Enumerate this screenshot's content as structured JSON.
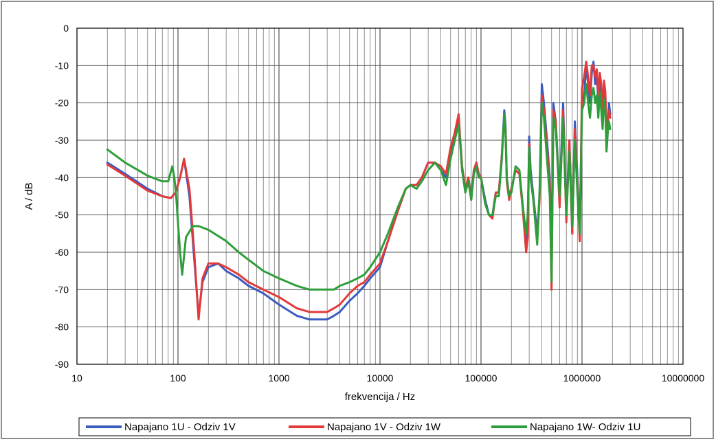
{
  "chart_data": {
    "type": "line",
    "title": "",
    "xlabel": "frekvencija / Hz",
    "ylabel": "A / dB",
    "x_scale": "log",
    "xlim": [
      10,
      10000000
    ],
    "ylim": [
      -90,
      0
    ],
    "grid": true,
    "legend_position": "bottom",
    "x_ticks": [
      "10",
      "100",
      "1000",
      "10000",
      "100000",
      "1000000",
      "10000000"
    ],
    "y_ticks": [
      "0",
      "-10",
      "-20",
      "-30",
      "-40",
      "-50",
      "-60",
      "-70",
      "-80",
      "-90"
    ],
    "series": [
      {
        "name": "Napajano 1U - Odziv 1V",
        "color": "#3a5bbf",
        "x": [
          20,
          30,
          50,
          70,
          85,
          95,
          105,
          115,
          130,
          145,
          160,
          175,
          200,
          250,
          300,
          400,
          500,
          700,
          1000,
          1500,
          2000,
          2500,
          3000,
          3500,
          4000,
          5000,
          6000,
          7000,
          8000,
          10000,
          12000,
          15000,
          18000,
          20000,
          23000,
          26000,
          30000,
          35000,
          40000,
          45000,
          50000,
          55000,
          60000,
          62000,
          65000,
          70000,
          75000,
          80000,
          85000,
          90000,
          95000,
          100000,
          110000,
          120000,
          130000,
          140000,
          150000,
          160000,
          170000,
          175000,
          180000,
          190000,
          200000,
          220000,
          240000,
          260000,
          280000,
          290000,
          300000,
          310000,
          330000,
          360000,
          380000,
          400000,
          420000,
          450000,
          480000,
          500000,
          520000,
          550000,
          600000,
          650000,
          700000,
          750000,
          800000,
          850000,
          900000,
          950000,
          1000000,
          1050000,
          1100000,
          1150000,
          1200000,
          1250000,
          1300000,
          1350000,
          1400000,
          1450000,
          1500000,
          1550000,
          1600000,
          1650000,
          1700000,
          1750000,
          1800000,
          1850000,
          1900000
        ],
        "y": [
          -36,
          -39,
          -43,
          -45,
          -45.5,
          -44,
          -40,
          -35,
          -45,
          -62,
          -77,
          -68,
          -64,
          -63,
          -65,
          -67,
          -69,
          -71,
          -74,
          -77,
          -78,
          -78,
          -78,
          -77,
          -76,
          -73,
          -71,
          -69,
          -67,
          -64,
          -57,
          -49,
          -43,
          -42,
          -42,
          -40,
          -36,
          -36,
          -38,
          -40,
          -33,
          -29,
          -24,
          -30,
          -38,
          -43,
          -40,
          -45,
          -38,
          -36,
          -39,
          -40,
          -46,
          -50,
          -50,
          -44,
          -44,
          -35,
          -22,
          -26,
          -40,
          -45,
          -43,
          -38,
          -39,
          -48,
          -57,
          -55,
          -29,
          -38,
          -45,
          -55,
          -45,
          -15,
          -20,
          -30,
          -40,
          -60,
          -20,
          -25,
          -45,
          -20,
          -50,
          -30,
          -55,
          -25,
          -40,
          -55,
          -20,
          -18,
          -10,
          -15,
          -20,
          -12,
          -9,
          -15,
          -12,
          -20,
          -13,
          -18,
          -25,
          -15,
          -18,
          -30,
          -25,
          -20,
          -23
        ]
      },
      {
        "name": "Napajano 1V - Odziv 1W",
        "color": "#e23a3a",
        "x": [
          20,
          30,
          50,
          70,
          85,
          95,
          105,
          115,
          130,
          145,
          160,
          175,
          200,
          250,
          300,
          400,
          500,
          700,
          1000,
          1500,
          2000,
          2500,
          3000,
          3500,
          4000,
          5000,
          6000,
          7000,
          8000,
          10000,
          12000,
          15000,
          18000,
          20000,
          23000,
          26000,
          30000,
          35000,
          40000,
          45000,
          50000,
          55000,
          60000,
          62000,
          65000,
          70000,
          75000,
          80000,
          85000,
          90000,
          95000,
          100000,
          110000,
          120000,
          130000,
          140000,
          150000,
          160000,
          170000,
          175000,
          180000,
          190000,
          200000,
          220000,
          240000,
          260000,
          280000,
          290000,
          300000,
          310000,
          330000,
          360000,
          380000,
          400000,
          420000,
          450000,
          480000,
          500000,
          520000,
          550000,
          600000,
          650000,
          700000,
          750000,
          800000,
          850000,
          900000,
          950000,
          1000000,
          1050000,
          1100000,
          1150000,
          1200000,
          1250000,
          1300000,
          1350000,
          1400000,
          1450000,
          1500000,
          1550000,
          1600000,
          1650000,
          1700000,
          1750000,
          1800000,
          1850000,
          1900000
        ],
        "y": [
          -36.5,
          -39.5,
          -43.5,
          -45,
          -45.5,
          -44,
          -40,
          -35,
          -43,
          -60,
          -78,
          -67,
          -63,
          -63,
          -64,
          -66,
          -68,
          -70,
          -72,
          -75,
          -76,
          -76,
          -76,
          -75,
          -74,
          -71,
          -69,
          -68,
          -66,
          -63,
          -57,
          -49,
          -43,
          -42,
          -42,
          -40,
          -36,
          -36,
          -37,
          -39,
          -32,
          -28,
          -23,
          -29,
          -37,
          -43,
          -40,
          -46,
          -38,
          -36,
          -39,
          -40,
          -47,
          -50,
          -51,
          -44,
          -44,
          -35,
          -24,
          -27,
          -41,
          -46,
          -43,
          -38,
          -39,
          -49,
          -60,
          -56,
          -31,
          -40,
          -46,
          -57,
          -46,
          -18,
          -22,
          -32,
          -42,
          -70,
          -22,
          -25,
          -48,
          -22,
          -52,
          -30,
          -55,
          -27,
          -42,
          -57,
          -16,
          -13,
          -9,
          -13,
          -18,
          -10,
          -10,
          -13,
          -11,
          -18,
          -12,
          -15,
          -22,
          -14,
          -17,
          -28,
          -25,
          -22,
          -24
        ]
      },
      {
        "name": "Napajano 1W- Odziv 1U",
        "color": "#2e9e3a",
        "x": [
          20,
          30,
          50,
          70,
          80,
          88,
          92,
          96,
          100,
          105,
          110,
          120,
          140,
          160,
          200,
          300,
          400,
          500,
          700,
          1000,
          1500,
          2000,
          2500,
          3000,
          3500,
          4000,
          5000,
          6000,
          7000,
          8000,
          10000,
          12000,
          15000,
          18000,
          20000,
          23000,
          26000,
          30000,
          35000,
          40000,
          45000,
          50000,
          55000,
          60000,
          62000,
          65000,
          70000,
          75000,
          80000,
          85000,
          90000,
          95000,
          100000,
          110000,
          120000,
          130000,
          140000,
          150000,
          160000,
          170000,
          175000,
          180000,
          190000,
          200000,
          220000,
          240000,
          260000,
          280000,
          290000,
          300000,
          310000,
          330000,
          360000,
          380000,
          400000,
          420000,
          450000,
          480000,
          500000,
          520000,
          550000,
          600000,
          650000,
          700000,
          750000,
          800000,
          850000,
          900000,
          950000,
          1000000,
          1050000,
          1100000,
          1150000,
          1200000,
          1250000,
          1300000,
          1350000,
          1400000,
          1450000,
          1500000,
          1550000,
          1600000,
          1650000,
          1700000,
          1750000,
          1800000,
          1850000,
          1900000
        ],
        "y": [
          -32.5,
          -36,
          -39.5,
          -41,
          -41,
          -37,
          -40,
          -45,
          -52,
          -60,
          -66,
          -56,
          -53,
          -53,
          -54,
          -57,
          -60,
          -62,
          -65,
          -67,
          -69,
          -70,
          -70,
          -70,
          -70,
          -69,
          -68,
          -67,
          -66,
          -64,
          -60,
          -55,
          -48,
          -43,
          -42,
          -43,
          -41,
          -38,
          -36,
          -38,
          -42,
          -35,
          -30,
          -26,
          -30,
          -38,
          -44,
          -41,
          -46,
          -39,
          -37,
          -40,
          -40,
          -47,
          -50,
          -50,
          -45,
          -45,
          -36,
          -23,
          -28,
          -40,
          -45,
          -44,
          -37,
          -38,
          -48,
          -55,
          -50,
          -32,
          -40,
          -46,
          -58,
          -44,
          -20,
          -24,
          -35,
          -45,
          -68,
          -24,
          -27,
          -45,
          -24,
          -50,
          -33,
          -53,
          -30,
          -44,
          -55,
          -22,
          -20,
          -15,
          -20,
          -24,
          -18,
          -16,
          -20,
          -18,
          -24,
          -17,
          -22,
          -27,
          -19,
          -22,
          -33,
          -28,
          -25,
          -27
        ]
      }
    ]
  }
}
